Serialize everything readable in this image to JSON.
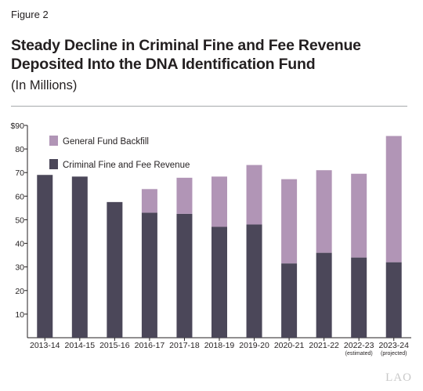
{
  "figure_label": "Figure 2",
  "logo_text": "LAO",
  "chart_data": {
    "type": "bar",
    "stacked": true,
    "title": "Steady Decline in Criminal Fine and Fee Revenue Deposited Into the DNA Identification Fund",
    "subtitle": "(In Millions)",
    "categories": [
      "2013-14",
      "2014-15",
      "2015-16",
      "2016-17",
      "2017-18",
      "2018-19",
      "2019-20",
      "2020-21",
      "2021-22",
      "2022-23",
      "2023-24"
    ],
    "category_notes": [
      "",
      "",
      "",
      "",
      "",
      "",
      "",
      "",
      "",
      "(estimated)",
      "(projected)"
    ],
    "y_ticks": [
      "",
      "10",
      "20",
      "30",
      "40",
      "50",
      "60",
      "70",
      "80",
      "$90"
    ],
    "ylim": [
      0,
      90
    ],
    "grid": false,
    "legend_placement": "top-left",
    "series": [
      {
        "name": "Criminal Fine and Fee Revenue",
        "color": "#4b4759",
        "values": [
          69,
          68.3,
          57.5,
          53,
          52.5,
          47,
          48,
          31.5,
          36,
          34,
          32
        ]
      },
      {
        "name": "General Fund Backfill",
        "color": "#b195b6",
        "values": [
          0,
          0,
          0,
          10,
          15.3,
          21.3,
          25.2,
          35.7,
          35,
          35.5,
          53.5
        ]
      }
    ]
  }
}
